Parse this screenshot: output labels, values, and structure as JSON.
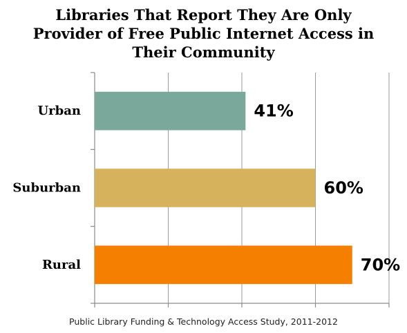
{
  "chart_data": {
    "type": "bar",
    "orientation": "horizontal",
    "title_lines": [
      "Libraries That Report They Are Only",
      "Provider of Free Public Internet Access in",
      "Their Community"
    ],
    "categories": [
      "Urban",
      "Suburban",
      "Rural"
    ],
    "values": [
      41,
      60,
      70
    ],
    "value_labels": [
      "41%",
      "60%",
      "70%"
    ],
    "colors": [
      "#7aa99b",
      "#d7b25d",
      "#f57f00"
    ],
    "xlim": [
      0,
      80
    ],
    "grid": true,
    "legend": "none",
    "source": "Public Library Funding & Technology Access Study, 2011-2012"
  }
}
